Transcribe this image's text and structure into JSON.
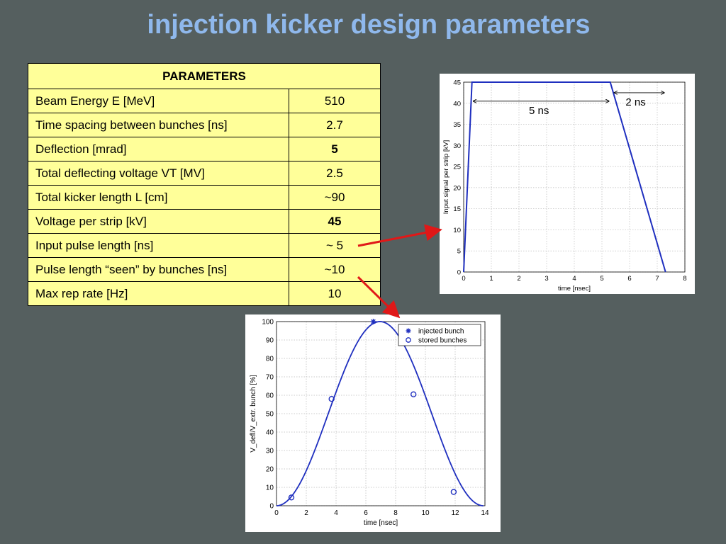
{
  "slide": {
    "title": "injection kicker design parameters"
  },
  "table": {
    "header": "PARAMETERS",
    "rows": [
      {
        "label": "Beam Energy E [MeV]",
        "value": "510",
        "bold": false
      },
      {
        "label": "Time spacing between bunches  [ns]",
        "value": "2.7",
        "bold": false
      },
      {
        "label": "Deflection [mrad]",
        "value": "5",
        "bold": true
      },
      {
        "label": "Total deflecting voltage VT [MV]",
        "value": "2.5",
        "bold": false
      },
      {
        "label": "Total kicker length L [cm]",
        "value": "~90",
        "bold": false
      },
      {
        "label": "Voltage per strip [kV]",
        "value": "45",
        "bold": true
      },
      {
        "label": "Input pulse length [ns]",
        "value": "~ 5",
        "bold": false
      },
      {
        "label": "Pulse length “seen” by bunches [ns]",
        "value": "~10",
        "bold": false
      },
      {
        "label": "Max rep rate [Hz]",
        "value": "10",
        "bold": false
      }
    ]
  },
  "colors": {
    "background": "#555f5f",
    "title": "#8fb8ec",
    "table_fill": "#ffff99",
    "curve": "#1f2fbf",
    "arrow": "#e01818"
  },
  "chart_data": [
    {
      "type": "line",
      "xlabel": "time [nsec]",
      "ylabel": "Input signal per strip [kV]",
      "xlim": [
        0,
        8
      ],
      "ylim": [
        0,
        45
      ],
      "xticks": [
        0,
        1,
        2,
        3,
        4,
        5,
        6,
        7,
        8
      ],
      "yticks": [
        0,
        5,
        10,
        15,
        20,
        25,
        30,
        35,
        40,
        45
      ],
      "grid": true,
      "series": [
        {
          "x": [
            0,
            0.3,
            5.3,
            7.3
          ],
          "y": [
            0,
            45,
            45,
            0
          ]
        }
      ],
      "annotations": [
        {
          "text": "5 ns",
          "from": 0.3,
          "to": 5.3,
          "y": 40.5
        },
        {
          "text": "2 ns",
          "from": 5.4,
          "to": 7.3,
          "y": 42.5
        }
      ]
    },
    {
      "type": "line",
      "xlabel": "time [nsec]",
      "ylabel": "V_defl/V_extr. bunch [%]",
      "xlim": [
        0,
        14
      ],
      "ylim": [
        0,
        100
      ],
      "xticks": [
        0,
        2,
        4,
        6,
        8,
        10,
        12,
        14
      ],
      "yticks": [
        0,
        10,
        20,
        30,
        40,
        50,
        60,
        70,
        80,
        90,
        100
      ],
      "grid": true,
      "legend_position": "top-right",
      "curve": {
        "x_start": 0,
        "x_end": 13.9,
        "peak_x": 6.5,
        "peak_y": 100
      },
      "series": [
        {
          "name": "injected bunch",
          "marker": "star",
          "x": [
            6.5
          ],
          "y": [
            100
          ]
        },
        {
          "name": "stored bunches",
          "marker": "circle",
          "x": [
            1.0,
            3.7,
            9.2,
            11.9
          ],
          "y": [
            4.5,
            58,
            60.5,
            7.5
          ]
        }
      ]
    }
  ]
}
